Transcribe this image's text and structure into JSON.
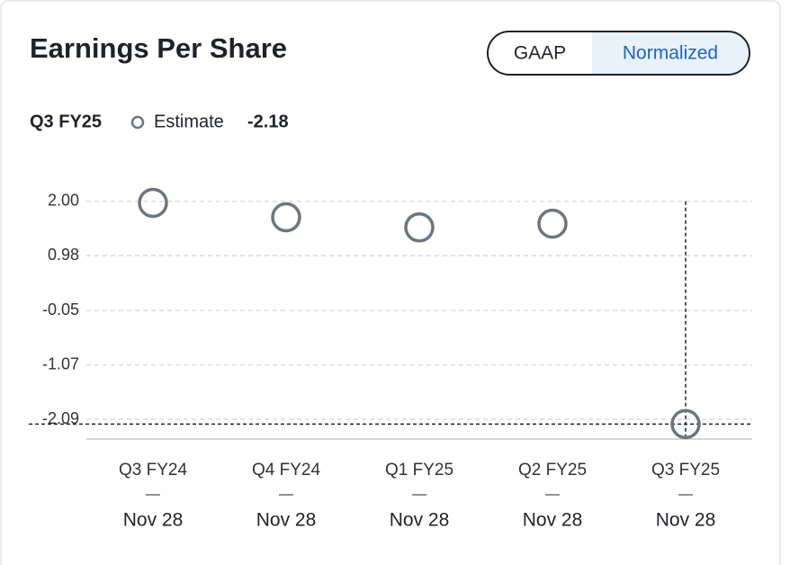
{
  "chart_data": {
    "type": "scatter",
    "title": "Earnings Per Share",
    "toggle": {
      "options": [
        "GAAP",
        "Normalized"
      ],
      "active": "Normalized"
    },
    "selected": {
      "period": "Q3 FY25",
      "label": "Estimate"
    },
    "categories": [
      {
        "period": "Q3 FY24",
        "date": "Nov 28"
      },
      {
        "period": "Q4 FY24",
        "date": "Nov 28"
      },
      {
        "period": "Q1 FY25",
        "date": "Nov 28"
      },
      {
        "period": "Q2 FY25",
        "date": "Nov 28"
      },
      {
        "period": "Q3 FY25",
        "date": "Nov 28"
      }
    ],
    "separator": "—",
    "series": [
      {
        "name": "Estimate",
        "color": "#6e757c",
        "values": [
          1.97,
          1.7,
          1.51,
          1.58,
          -2.18
        ]
      }
    ],
    "ylim": [
      -2.46,
      2.4
    ],
    "yticks": [
      {
        "value": 2,
        "label": "2.00"
      },
      0.98,
      -0.05,
      -1.07,
      -2.09
    ],
    "grid": true
  }
}
